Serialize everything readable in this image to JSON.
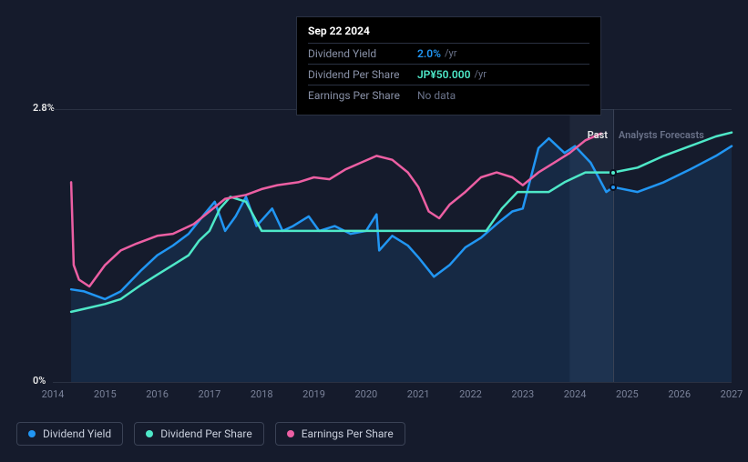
{
  "chart": {
    "type": "line",
    "background_color": "#151b2c",
    "grid_color": "#2a3142",
    "axis_label_color": "#7a8299",
    "y_axis": {
      "min_label": "0%",
      "max_label": "2.8%",
      "min": 0,
      "max": 2.8
    },
    "x_axis": {
      "years": [
        "2014",
        "2015",
        "2016",
        "2017",
        "2018",
        "2019",
        "2020",
        "2021",
        "2022",
        "2023",
        "2024",
        "2025",
        "2026",
        "2027"
      ],
      "start": 2014,
      "end": 2027
    },
    "current_marker": {
      "year": 2024.73,
      "past_label": "Past",
      "forecast_label": "Analysts Forecasts"
    },
    "series": [
      {
        "name": "Dividend Yield",
        "color": "#2196f3",
        "stroke_width": 2.5,
        "has_area_fill": true,
        "area_fill": "rgba(33,150,243,0.12)",
        "points": [
          [
            2014.35,
            0.95
          ],
          [
            2014.6,
            0.93
          ],
          [
            2015.0,
            0.85
          ],
          [
            2015.3,
            0.93
          ],
          [
            2015.7,
            1.15
          ],
          [
            2016.0,
            1.3
          ],
          [
            2016.3,
            1.4
          ],
          [
            2016.6,
            1.52
          ],
          [
            2016.9,
            1.72
          ],
          [
            2017.1,
            1.85
          ],
          [
            2017.3,
            1.55
          ],
          [
            2017.5,
            1.7
          ],
          [
            2017.7,
            1.9
          ],
          [
            2017.9,
            1.6
          ],
          [
            2018.2,
            1.78
          ],
          [
            2018.4,
            1.55
          ],
          [
            2018.6,
            1.6
          ],
          [
            2018.9,
            1.7
          ],
          [
            2019.1,
            1.55
          ],
          [
            2019.4,
            1.6
          ],
          [
            2019.7,
            1.52
          ],
          [
            2020.0,
            1.55
          ],
          [
            2020.2,
            1.72
          ],
          [
            2020.25,
            1.35
          ],
          [
            2020.5,
            1.5
          ],
          [
            2020.8,
            1.4
          ],
          [
            2021.0,
            1.28
          ],
          [
            2021.3,
            1.08
          ],
          [
            2021.6,
            1.2
          ],
          [
            2021.9,
            1.38
          ],
          [
            2022.2,
            1.48
          ],
          [
            2022.5,
            1.62
          ],
          [
            2022.8,
            1.75
          ],
          [
            2023.0,
            1.78
          ],
          [
            2023.3,
            2.4
          ],
          [
            2023.5,
            2.5
          ],
          [
            2023.8,
            2.35
          ],
          [
            2024.0,
            2.42
          ],
          [
            2024.3,
            2.25
          ],
          [
            2024.6,
            1.95
          ],
          [
            2024.73,
            2.0
          ],
          [
            2025.2,
            1.95
          ],
          [
            2025.7,
            2.05
          ],
          [
            2026.2,
            2.18
          ],
          [
            2026.7,
            2.32
          ],
          [
            2027.0,
            2.42
          ]
        ],
        "current_dot": [
          2024.73,
          2.0
        ]
      },
      {
        "name": "Dividend Per Share",
        "color": "#4ee8c8",
        "stroke_width": 2.5,
        "has_area_fill": false,
        "points": [
          [
            2014.35,
            0.72
          ],
          [
            2014.6,
            0.75
          ],
          [
            2015.0,
            0.8
          ],
          [
            2015.3,
            0.85
          ],
          [
            2015.7,
            1.0
          ],
          [
            2016.0,
            1.1
          ],
          [
            2016.3,
            1.2
          ],
          [
            2016.6,
            1.3
          ],
          [
            2016.8,
            1.45
          ],
          [
            2017.0,
            1.55
          ],
          [
            2017.2,
            1.78
          ],
          [
            2017.4,
            1.9
          ],
          [
            2017.7,
            1.85
          ],
          [
            2018.0,
            1.55
          ],
          [
            2018.3,
            1.55
          ],
          [
            2018.7,
            1.55
          ],
          [
            2019.0,
            1.55
          ],
          [
            2019.3,
            1.55
          ],
          [
            2020.9,
            1.55
          ],
          [
            2021.0,
            1.55
          ],
          [
            2022.0,
            1.55
          ],
          [
            2022.3,
            1.55
          ],
          [
            2022.6,
            1.78
          ],
          [
            2022.9,
            1.95
          ],
          [
            2023.2,
            1.95
          ],
          [
            2023.5,
            1.95
          ],
          [
            2023.8,
            2.05
          ],
          [
            2024.2,
            2.15
          ],
          [
            2024.73,
            2.15
          ],
          [
            2025.2,
            2.2
          ],
          [
            2025.7,
            2.32
          ],
          [
            2026.2,
            2.42
          ],
          [
            2026.7,
            2.52
          ],
          [
            2027.0,
            2.56
          ]
        ],
        "current_dot": [
          2024.73,
          2.15
        ]
      },
      {
        "name": "Earnings Per Share",
        "color": "#ec5fa3",
        "stroke_width": 2.5,
        "has_area_fill": false,
        "points": [
          [
            2014.35,
            2.05
          ],
          [
            2014.4,
            1.2
          ],
          [
            2014.5,
            1.05
          ],
          [
            2014.7,
            0.98
          ],
          [
            2015.0,
            1.2
          ],
          [
            2015.3,
            1.35
          ],
          [
            2015.6,
            1.42
          ],
          [
            2016.0,
            1.5
          ],
          [
            2016.3,
            1.52
          ],
          [
            2016.7,
            1.62
          ],
          [
            2017.0,
            1.75
          ],
          [
            2017.3,
            1.88
          ],
          [
            2017.7,
            1.92
          ],
          [
            2018.0,
            1.98
          ],
          [
            2018.3,
            2.02
          ],
          [
            2018.7,
            2.05
          ],
          [
            2019.0,
            2.1
          ],
          [
            2019.3,
            2.08
          ],
          [
            2019.6,
            2.18
          ],
          [
            2019.9,
            2.25
          ],
          [
            2020.2,
            2.32
          ],
          [
            2020.5,
            2.28
          ],
          [
            2020.8,
            2.15
          ],
          [
            2021.0,
            2.0
          ],
          [
            2021.2,
            1.75
          ],
          [
            2021.4,
            1.68
          ],
          [
            2021.6,
            1.82
          ],
          [
            2021.9,
            1.95
          ],
          [
            2022.2,
            2.1
          ],
          [
            2022.5,
            2.15
          ],
          [
            2022.8,
            2.1
          ],
          [
            2023.0,
            2.02
          ],
          [
            2023.3,
            2.15
          ],
          [
            2023.6,
            2.25
          ],
          [
            2023.9,
            2.35
          ],
          [
            2024.2,
            2.48
          ],
          [
            2024.5,
            2.55
          ]
        ]
      }
    ],
    "markers": [
      {
        "series": 0,
        "color": "#2196f3"
      },
      {
        "series": 1,
        "color": "#4ee8c8"
      }
    ]
  },
  "tooltip": {
    "date": "Sep 22 2024",
    "rows": [
      {
        "label": "Dividend Yield",
        "value": "2.0%",
        "unit": "/yr",
        "color": "#2196f3"
      },
      {
        "label": "Dividend Per Share",
        "value": "JP¥50.000",
        "unit": "/yr",
        "color": "#4ee8c8"
      },
      {
        "label": "Earnings Per Share",
        "value": "No data",
        "nodata": true
      }
    ]
  },
  "legend": {
    "items": [
      {
        "label": "Dividend Yield",
        "color": "#2196f3"
      },
      {
        "label": "Dividend Per Share",
        "color": "#4ee8c8"
      },
      {
        "label": "Earnings Per Share",
        "color": "#ec5fa3"
      }
    ]
  }
}
